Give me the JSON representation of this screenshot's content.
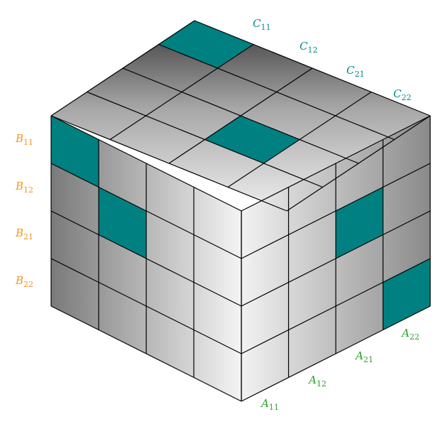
{
  "colors": {
    "highlight": "#008080",
    "label_a": "#2aa02a",
    "label_b": "#f39320",
    "label_c": "#008b8b",
    "edge": "#000000"
  },
  "labels": {
    "a": [
      {
        "letter": "A",
        "index": "11"
      },
      {
        "letter": "A",
        "index": "12"
      },
      {
        "letter": "A",
        "index": "21"
      },
      {
        "letter": "A",
        "index": "22"
      }
    ],
    "b": [
      {
        "letter": "B",
        "index": "11"
      },
      {
        "letter": "B",
        "index": "12"
      },
      {
        "letter": "B",
        "index": "21"
      },
      {
        "letter": "B",
        "index": "22"
      }
    ],
    "c": [
      {
        "letter": "C",
        "index": "11"
      },
      {
        "letter": "C",
        "index": "12"
      },
      {
        "letter": "C",
        "index": "21"
      },
      {
        "letter": "C",
        "index": "22"
      }
    ]
  },
  "highlighted_cells": {
    "top": [
      [
        0,
        0
      ],
      [
        2,
        2
      ]
    ],
    "left": [
      [
        0,
        0
      ],
      [
        1,
        1
      ]
    ],
    "right": [
      [
        1,
        2
      ],
      [
        3,
        3
      ]
    ]
  }
}
